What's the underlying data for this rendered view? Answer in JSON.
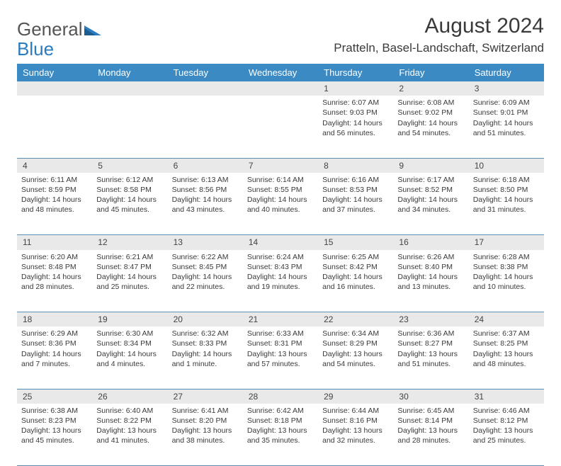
{
  "brand": {
    "part1": "General",
    "part2": "Blue"
  },
  "title": "August 2024",
  "location": "Pratteln, Basel-Landschaft, Switzerland",
  "colors": {
    "header_bg": "#3b8ac4",
    "header_text": "#ffffff",
    "daynum_bg": "#e9e9e9",
    "row_border": "#5a8fb8",
    "logo_gray": "#555555",
    "logo_blue": "#2b7bbf",
    "text": "#3a3a3a",
    "page_bg": "#ffffff"
  },
  "day_headers": [
    "Sunday",
    "Monday",
    "Tuesday",
    "Wednesday",
    "Thursday",
    "Friday",
    "Saturday"
  ],
  "weeks": [
    [
      {
        "num": "",
        "lines": []
      },
      {
        "num": "",
        "lines": []
      },
      {
        "num": "",
        "lines": []
      },
      {
        "num": "",
        "lines": []
      },
      {
        "num": "1",
        "lines": [
          "Sunrise: 6:07 AM",
          "Sunset: 9:03 PM",
          "Daylight: 14 hours and 56 minutes."
        ]
      },
      {
        "num": "2",
        "lines": [
          "Sunrise: 6:08 AM",
          "Sunset: 9:02 PM",
          "Daylight: 14 hours and 54 minutes."
        ]
      },
      {
        "num": "3",
        "lines": [
          "Sunrise: 6:09 AM",
          "Sunset: 9:01 PM",
          "Daylight: 14 hours and 51 minutes."
        ]
      }
    ],
    [
      {
        "num": "4",
        "lines": [
          "Sunrise: 6:11 AM",
          "Sunset: 8:59 PM",
          "Daylight: 14 hours and 48 minutes."
        ]
      },
      {
        "num": "5",
        "lines": [
          "Sunrise: 6:12 AM",
          "Sunset: 8:58 PM",
          "Daylight: 14 hours and 45 minutes."
        ]
      },
      {
        "num": "6",
        "lines": [
          "Sunrise: 6:13 AM",
          "Sunset: 8:56 PM",
          "Daylight: 14 hours and 43 minutes."
        ]
      },
      {
        "num": "7",
        "lines": [
          "Sunrise: 6:14 AM",
          "Sunset: 8:55 PM",
          "Daylight: 14 hours and 40 minutes."
        ]
      },
      {
        "num": "8",
        "lines": [
          "Sunrise: 6:16 AM",
          "Sunset: 8:53 PM",
          "Daylight: 14 hours and 37 minutes."
        ]
      },
      {
        "num": "9",
        "lines": [
          "Sunrise: 6:17 AM",
          "Sunset: 8:52 PM",
          "Daylight: 14 hours and 34 minutes."
        ]
      },
      {
        "num": "10",
        "lines": [
          "Sunrise: 6:18 AM",
          "Sunset: 8:50 PM",
          "Daylight: 14 hours and 31 minutes."
        ]
      }
    ],
    [
      {
        "num": "11",
        "lines": [
          "Sunrise: 6:20 AM",
          "Sunset: 8:48 PM",
          "Daylight: 14 hours and 28 minutes."
        ]
      },
      {
        "num": "12",
        "lines": [
          "Sunrise: 6:21 AM",
          "Sunset: 8:47 PM",
          "Daylight: 14 hours and 25 minutes."
        ]
      },
      {
        "num": "13",
        "lines": [
          "Sunrise: 6:22 AM",
          "Sunset: 8:45 PM",
          "Daylight: 14 hours and 22 minutes."
        ]
      },
      {
        "num": "14",
        "lines": [
          "Sunrise: 6:24 AM",
          "Sunset: 8:43 PM",
          "Daylight: 14 hours and 19 minutes."
        ]
      },
      {
        "num": "15",
        "lines": [
          "Sunrise: 6:25 AM",
          "Sunset: 8:42 PM",
          "Daylight: 14 hours and 16 minutes."
        ]
      },
      {
        "num": "16",
        "lines": [
          "Sunrise: 6:26 AM",
          "Sunset: 8:40 PM",
          "Daylight: 14 hours and 13 minutes."
        ]
      },
      {
        "num": "17",
        "lines": [
          "Sunrise: 6:28 AM",
          "Sunset: 8:38 PM",
          "Daylight: 14 hours and 10 minutes."
        ]
      }
    ],
    [
      {
        "num": "18",
        "lines": [
          "Sunrise: 6:29 AM",
          "Sunset: 8:36 PM",
          "Daylight: 14 hours and 7 minutes."
        ]
      },
      {
        "num": "19",
        "lines": [
          "Sunrise: 6:30 AM",
          "Sunset: 8:34 PM",
          "Daylight: 14 hours and 4 minutes."
        ]
      },
      {
        "num": "20",
        "lines": [
          "Sunrise: 6:32 AM",
          "Sunset: 8:33 PM",
          "Daylight: 14 hours and 1 minute."
        ]
      },
      {
        "num": "21",
        "lines": [
          "Sunrise: 6:33 AM",
          "Sunset: 8:31 PM",
          "Daylight: 13 hours and 57 minutes."
        ]
      },
      {
        "num": "22",
        "lines": [
          "Sunrise: 6:34 AM",
          "Sunset: 8:29 PM",
          "Daylight: 13 hours and 54 minutes."
        ]
      },
      {
        "num": "23",
        "lines": [
          "Sunrise: 6:36 AM",
          "Sunset: 8:27 PM",
          "Daylight: 13 hours and 51 minutes."
        ]
      },
      {
        "num": "24",
        "lines": [
          "Sunrise: 6:37 AM",
          "Sunset: 8:25 PM",
          "Daylight: 13 hours and 48 minutes."
        ]
      }
    ],
    [
      {
        "num": "25",
        "lines": [
          "Sunrise: 6:38 AM",
          "Sunset: 8:23 PM",
          "Daylight: 13 hours and 45 minutes."
        ]
      },
      {
        "num": "26",
        "lines": [
          "Sunrise: 6:40 AM",
          "Sunset: 8:22 PM",
          "Daylight: 13 hours and 41 minutes."
        ]
      },
      {
        "num": "27",
        "lines": [
          "Sunrise: 6:41 AM",
          "Sunset: 8:20 PM",
          "Daylight: 13 hours and 38 minutes."
        ]
      },
      {
        "num": "28",
        "lines": [
          "Sunrise: 6:42 AM",
          "Sunset: 8:18 PM",
          "Daylight: 13 hours and 35 minutes."
        ]
      },
      {
        "num": "29",
        "lines": [
          "Sunrise: 6:44 AM",
          "Sunset: 8:16 PM",
          "Daylight: 13 hours and 32 minutes."
        ]
      },
      {
        "num": "30",
        "lines": [
          "Sunrise: 6:45 AM",
          "Sunset: 8:14 PM",
          "Daylight: 13 hours and 28 minutes."
        ]
      },
      {
        "num": "31",
        "lines": [
          "Sunrise: 6:46 AM",
          "Sunset: 8:12 PM",
          "Daylight: 13 hours and 25 minutes."
        ]
      }
    ]
  ]
}
